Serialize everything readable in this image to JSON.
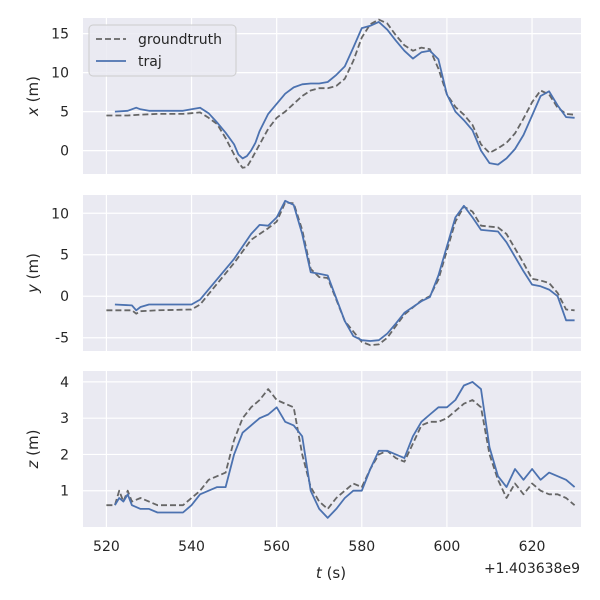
{
  "chart_data": [
    {
      "type": "line",
      "ylabel_var": "x",
      "ylabel_unit": " (m)",
      "ylim": [
        -3,
        17
      ],
      "yticks": [
        0,
        5,
        10,
        15
      ],
      "legend": {
        "position": "top-left",
        "entries": [
          "groundtruth",
          "traj"
        ]
      },
      "series": [
        {
          "name": "groundtruth",
          "style": "dashed",
          "color": "#666666",
          "x": [
            520,
            525,
            528,
            532,
            535,
            538,
            540,
            542,
            544,
            546,
            548,
            550,
            551,
            552,
            553,
            554,
            556,
            558,
            560,
            562,
            564,
            566,
            568,
            570,
            572,
            574,
            576,
            578,
            580,
            582,
            584,
            586,
            588,
            590,
            592,
            594,
            596,
            598,
            600,
            602,
            604,
            606,
            608,
            610,
            612,
            614,
            616,
            618,
            620,
            622,
            624,
            626,
            628,
            630
          ],
          "y": [
            4.5,
            4.5,
            4.6,
            4.7,
            4.7,
            4.7,
            4.8,
            4.9,
            4.2,
            3.4,
            1.6,
            -0.5,
            -1.5,
            -2.2,
            -2.1,
            -1.2,
            0.8,
            2.8,
            4.2,
            5.0,
            6.0,
            7.0,
            7.7,
            8.0,
            8.0,
            8.3,
            9.2,
            11.5,
            14.5,
            16.2,
            16.8,
            16.3,
            14.8,
            13.5,
            12.8,
            13.2,
            13.0,
            10.5,
            7.2,
            5.6,
            4.6,
            3.3,
            0.8,
            -0.3,
            0.3,
            1.0,
            2.2,
            4.1,
            6.2,
            7.7,
            7.2,
            5.5,
            4.7,
            4.6
          ]
        },
        {
          "name": "traj",
          "style": "solid",
          "color": "#4c72b0",
          "x": [
            522,
            525,
            527,
            528,
            530,
            533,
            536,
            538,
            540,
            542,
            544,
            546,
            548,
            550,
            551,
            552,
            553,
            554,
            555,
            556,
            558,
            560,
            562,
            564,
            566,
            568,
            570,
            572,
            574,
            576,
            578,
            580,
            582,
            584,
            586,
            588,
            590,
            592,
            594,
            596,
            598,
            600,
            602,
            604,
            606,
            608,
            610,
            612,
            614,
            616,
            618,
            620,
            622,
            624,
            626,
            628,
            630
          ],
          "y": [
            5.0,
            5.1,
            5.5,
            5.3,
            5.1,
            5.1,
            5.1,
            5.1,
            5.3,
            5.5,
            4.8,
            3.6,
            2.3,
            0.8,
            -0.5,
            -1.0,
            -0.7,
            0.0,
            1.0,
            2.5,
            4.7,
            6.0,
            7.3,
            8.1,
            8.5,
            8.6,
            8.6,
            8.8,
            9.7,
            10.8,
            13.2,
            15.7,
            16.0,
            16.5,
            15.5,
            14.1,
            12.8,
            11.8,
            12.6,
            12.8,
            11.7,
            7.2,
            5.0,
            3.9,
            2.6,
            0.0,
            -1.6,
            -1.8,
            -1.0,
            0.2,
            2.0,
            4.5,
            7.0,
            7.6,
            5.8,
            4.3,
            4.2
          ]
        }
      ]
    },
    {
      "type": "line",
      "ylabel_var": "y",
      "ylabel_unit": " (m)",
      "ylim": [
        -6.6,
        12.2
      ],
      "yticks": [
        -5,
        0,
        5,
        10
      ],
      "series": [
        {
          "name": "groundtruth",
          "style": "dashed",
          "color": "#666666",
          "x": [
            520,
            526,
            527,
            528,
            532,
            540,
            542,
            550,
            554,
            558,
            560,
            562,
            564,
            566,
            568,
            570,
            572,
            576,
            580,
            582,
            584,
            586,
            588,
            590,
            594,
            596,
            598,
            600,
            602,
            604,
            606,
            608,
            612,
            614,
            618,
            620,
            622,
            624,
            626,
            628,
            630
          ],
          "y": [
            -1.7,
            -1.7,
            -2.1,
            -1.8,
            -1.7,
            -1.6,
            -1.0,
            4.0,
            6.8,
            8.2,
            9.0,
            11.3,
            11.2,
            8.0,
            3.3,
            2.3,
            2.2,
            -3.0,
            -5.5,
            -5.9,
            -5.8,
            -5.0,
            -3.6,
            -2.2,
            -0.5,
            0.0,
            2.0,
            5.5,
            9.0,
            10.8,
            10.2,
            8.5,
            8.3,
            7.5,
            4.0,
            2.1,
            1.9,
            1.6,
            0.4,
            -1.6,
            -1.7
          ]
        },
        {
          "name": "traj",
          "style": "solid",
          "color": "#4c72b0",
          "x": [
            522,
            526,
            527,
            528,
            530,
            532,
            540,
            542,
            550,
            554,
            556,
            558,
            560,
            562,
            564,
            566,
            568,
            570,
            572,
            576,
            578,
            580,
            582,
            584,
            586,
            588,
            590,
            594,
            596,
            598,
            600,
            602,
            604,
            606,
            608,
            612,
            614,
            618,
            620,
            622,
            624,
            626,
            628,
            630
          ],
          "y": [
            -1.0,
            -1.1,
            -1.7,
            -1.3,
            -1.0,
            -1.0,
            -1.0,
            -0.4,
            4.5,
            7.5,
            8.6,
            8.5,
            9.5,
            11.5,
            11.0,
            7.5,
            2.9,
            2.7,
            2.5,
            -3.0,
            -4.8,
            -5.3,
            -5.4,
            -5.3,
            -4.5,
            -3.3,
            -2.0,
            -0.6,
            -0.1,
            2.5,
            6.0,
            9.5,
            10.9,
            9.5,
            8.0,
            7.8,
            6.5,
            3.0,
            1.4,
            1.2,
            0.8,
            0.0,
            -2.9,
            -2.9
          ]
        }
      ]
    },
    {
      "type": "line",
      "ylabel_var": "z",
      "ylabel_unit": " (m)",
      "ylim": [
        0.0,
        4.3
      ],
      "yticks": [
        1,
        2,
        3,
        4
      ],
      "series": [
        {
          "name": "groundtruth",
          "style": "dashed",
          "color": "#666666",
          "x": [
            520,
            522,
            523,
            524,
            525,
            526,
            528,
            530,
            532,
            534,
            536,
            538,
            540,
            542,
            544,
            546,
            548,
            550,
            552,
            554,
            556,
            558,
            560,
            562,
            564,
            566,
            568,
            570,
            572,
            574,
            576,
            578,
            580,
            582,
            584,
            586,
            588,
            590,
            592,
            594,
            596,
            598,
            600,
            602,
            604,
            606,
            608,
            610,
            612,
            614,
            616,
            618,
            620,
            622,
            624,
            626,
            628,
            630
          ],
          "y": [
            0.6,
            0.6,
            1.0,
            0.7,
            1.0,
            0.7,
            0.8,
            0.7,
            0.6,
            0.6,
            0.6,
            0.6,
            0.8,
            1.0,
            1.3,
            1.4,
            1.5,
            2.4,
            3.0,
            3.3,
            3.5,
            3.8,
            3.5,
            3.4,
            3.3,
            2.0,
            1.1,
            0.7,
            0.5,
            0.8,
            1.0,
            1.2,
            1.1,
            1.6,
            2.0,
            2.1,
            1.9,
            1.8,
            2.3,
            2.8,
            2.9,
            2.9,
            3.0,
            3.2,
            3.4,
            3.5,
            3.3,
            2.0,
            1.3,
            0.8,
            1.2,
            0.9,
            1.2,
            1.0,
            0.9,
            0.9,
            0.8,
            0.6
          ]
        },
        {
          "name": "traj",
          "style": "solid",
          "color": "#4c72b0",
          "x": [
            522,
            523,
            524,
            525,
            526,
            528,
            530,
            532,
            534,
            536,
            538,
            540,
            542,
            544,
            546,
            548,
            550,
            552,
            554,
            556,
            558,
            560,
            562,
            564,
            566,
            568,
            570,
            572,
            574,
            576,
            578,
            580,
            582,
            584,
            586,
            588,
            590,
            592,
            594,
            596,
            598,
            600,
            602,
            604,
            606,
            608,
            610,
            612,
            614,
            616,
            618,
            620,
            622,
            624,
            626,
            628,
            630
          ],
          "y": [
            0.6,
            0.8,
            0.7,
            0.9,
            0.6,
            0.5,
            0.5,
            0.4,
            0.4,
            0.4,
            0.4,
            0.6,
            0.9,
            1.0,
            1.1,
            1.1,
            2.0,
            2.6,
            2.8,
            3.0,
            3.1,
            3.3,
            2.9,
            2.8,
            2.5,
            1.0,
            0.5,
            0.25,
            0.5,
            0.8,
            1.0,
            1.0,
            1.6,
            2.1,
            2.1,
            2.0,
            1.9,
            2.5,
            2.9,
            3.1,
            3.3,
            3.3,
            3.5,
            3.9,
            4.0,
            3.8,
            2.2,
            1.4,
            1.1,
            1.6,
            1.3,
            1.6,
            1.3,
            1.5,
            1.4,
            1.3,
            1.1
          ]
        }
      ]
    }
  ],
  "x_axis": {
    "label_var": "t",
    "label_unit": " (s)",
    "xlim": [
      514.5,
      631.5
    ],
    "ticks": [
      520,
      540,
      560,
      580,
      600,
      620
    ],
    "offset_label": "+1.403638e9"
  },
  "style": {
    "panel_bg": "#eaeaf2",
    "grid_color": "#ffffff",
    "text_color": "#262626"
  }
}
